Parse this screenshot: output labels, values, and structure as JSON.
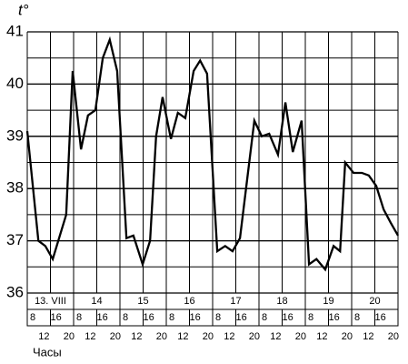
{
  "chart_data": {
    "type": "line",
    "y_label": "t°",
    "x_label": "Часы",
    "day_labels": [
      "13. VIII",
      "14",
      "15",
      "16",
      "17",
      "18",
      "19",
      "20"
    ],
    "hour_labels": [
      "8",
      "12",
      "16",
      "20"
    ],
    "xlim": [
      0,
      8
    ],
    "ylim": [
      36,
      41
    ],
    "yticks": [
      36,
      37,
      38,
      39,
      40,
      41
    ],
    "grid": true,
    "color": "#000000",
    "x": [
      0,
      0.24,
      0.39,
      0.55,
      0.84,
      0.98,
      1.16,
      1.31,
      1.47,
      1.63,
      1.78,
      1.94,
      2.14,
      2.29,
      2.49,
      2.65,
      2.78,
      2.92,
      3.1,
      3.25,
      3.41,
      3.59,
      3.73,
      3.88,
      4.1,
      4.27,
      4.43,
      4.59,
      4.9,
      5.06,
      5.22,
      5.41,
      5.57,
      5.73,
      5.92,
      6.08,
      6.24,
      6.43,
      6.61,
      6.75,
      6.86,
      7.04,
      7.22,
      7.37,
      7.53,
      7.69,
      7.84,
      8.0
    ],
    "values": [
      39.1,
      37.0,
      36.9,
      36.65,
      37.5,
      40.25,
      38.75,
      39.4,
      39.5,
      40.5,
      40.85,
      40.25,
      37.05,
      37.1,
      36.55,
      37.0,
      39.0,
      39.75,
      38.95,
      39.45,
      39.35,
      40.25,
      40.45,
      40.2,
      36.8,
      36.9,
      36.8,
      37.05,
      39.3,
      39.0,
      39.05,
      38.65,
      39.65,
      38.7,
      39.3,
      36.55,
      36.65,
      36.45,
      36.9,
      36.8,
      38.5,
      38.3,
      38.3,
      38.25,
      38.05,
      37.6,
      37.35,
      37.1
    ]
  }
}
